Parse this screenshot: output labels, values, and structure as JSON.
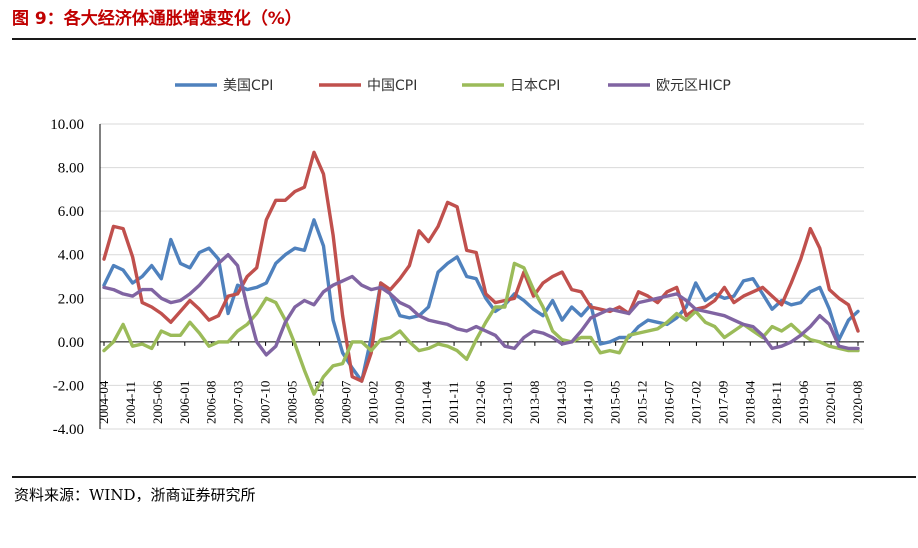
{
  "header": {
    "title": "图 9：各大经济体通胀增速变化（%）"
  },
  "footer": {
    "source": "资料来源：WIND，浙商证券研究所"
  },
  "chart_data": {
    "type": "line",
    "title": "",
    "xlabel": "",
    "ylabel": "",
    "ylim": [
      -4,
      10
    ],
    "yticks": [
      "10.00",
      "8.00",
      "6.00",
      "4.00",
      "2.00",
      "0.00",
      "-2.00",
      "-4.00"
    ],
    "x_ticks": [
      "2004-04",
      "2004-11",
      "2005-06",
      "2006-01",
      "2006-08",
      "2007-03",
      "2007-10",
      "2008-05",
      "2008-12",
      "2009-07",
      "2010-02",
      "2010-09",
      "2011-04",
      "2011-11",
      "2012-06",
      "2013-01",
      "2013-08",
      "2014-03",
      "2014-10",
      "2015-05",
      "2015-12",
      "2016-07",
      "2017-02",
      "2017-09",
      "2018-04",
      "2018-11",
      "2019-06",
      "2020-01",
      "2020-08"
    ],
    "grid": true,
    "legend": "top",
    "series": [
      {
        "name": "美国CPI",
        "color": "#4f81bd",
        "values": [
          2.6,
          3.5,
          3.3,
          2.7,
          3.0,
          3.5,
          2.9,
          4.7,
          3.6,
          3.4,
          4.1,
          4.3,
          3.8,
          1.3,
          2.6,
          2.4,
          2.5,
          2.7,
          3.6,
          4.0,
          4.3,
          4.2,
          5.6,
          4.4,
          1.0,
          -0.5,
          -1.2,
          -1.8,
          0.2,
          2.7,
          2.2,
          1.2,
          1.1,
          1.2,
          1.6,
          3.2,
          3.6,
          3.9,
          3.0,
          2.9,
          2.0,
          1.4,
          1.7,
          2.2,
          1.9,
          1.5,
          1.2,
          1.9,
          1.0,
          1.6,
          1.2,
          1.7,
          -0.1,
          0.0,
          0.2,
          0.2,
          0.7,
          1.0,
          0.9,
          0.8,
          1.1,
          1.6,
          2.7,
          1.9,
          2.2,
          2.0,
          2.1,
          2.8,
          2.9,
          2.2,
          1.5,
          1.9,
          1.7,
          1.8,
          2.3,
          2.5,
          1.5,
          0.1,
          1.0,
          1.4
        ]
      },
      {
        "name": "中国CPI",
        "color": "#c0504d",
        "values": [
          3.8,
          5.3,
          5.2,
          3.9,
          1.8,
          1.6,
          1.3,
          0.9,
          1.4,
          1.9,
          1.5,
          1.0,
          1.2,
          2.1,
          2.2,
          3.0,
          3.4,
          5.6,
          6.5,
          6.5,
          6.9,
          7.1,
          8.7,
          7.7,
          4.9,
          1.2,
          -1.6,
          -1.8,
          -0.5,
          2.7,
          2.4,
          2.9,
          3.5,
          5.1,
          4.6,
          5.3,
          6.4,
          6.2,
          4.2,
          4.1,
          2.2,
          1.8,
          1.9,
          2.0,
          3.2,
          2.1,
          2.7,
          3.0,
          3.2,
          2.4,
          2.3,
          1.6,
          1.5,
          1.4,
          1.6,
          1.3,
          2.3,
          2.1,
          1.8,
          2.3,
          2.5,
          1.2,
          1.5,
          1.6,
          1.9,
          2.5,
          1.8,
          2.1,
          2.3,
          2.5,
          2.1,
          1.7,
          2.7,
          3.8,
          5.2,
          4.3,
          2.4,
          2.0,
          1.7,
          0.5
        ]
      },
      {
        "name": "日本CPI",
        "color": "#9bbb59",
        "values": [
          -0.4,
          0.0,
          0.8,
          -0.2,
          -0.1,
          -0.3,
          0.5,
          0.3,
          0.3,
          0.9,
          0.4,
          -0.2,
          0.0,
          0.0,
          0.5,
          0.8,
          1.3,
          2.0,
          1.8,
          1.0,
          -0.1,
          -1.3,
          -2.4,
          -1.6,
          -1.1,
          -1.0,
          0.0,
          0.0,
          -0.4,
          0.1,
          0.2,
          0.5,
          0.0,
          -0.4,
          -0.3,
          -0.1,
          -0.2,
          -0.4,
          -0.8,
          0.1,
          0.9,
          1.6,
          1.6,
          3.6,
          3.4,
          2.4,
          1.6,
          0.5,
          0.1,
          0.0,
          0.2,
          0.2,
          -0.5,
          -0.4,
          -0.5,
          0.3,
          0.4,
          0.5,
          0.6,
          0.9,
          1.3,
          1.0,
          1.4,
          0.9,
          0.7,
          0.2,
          0.5,
          0.8,
          0.5,
          0.2,
          0.7,
          0.5,
          0.8,
          0.4,
          0.1,
          0.0,
          -0.2,
          -0.3,
          -0.4,
          -0.4
        ]
      },
      {
        "name": "欧元区HICP",
        "color": "#8064a2",
        "values": [
          2.5,
          2.4,
          2.2,
          2.1,
          2.4,
          2.4,
          2.0,
          1.8,
          1.9,
          2.2,
          2.6,
          3.1,
          3.6,
          4.0,
          3.5,
          1.6,
          0.0,
          -0.6,
          -0.2,
          0.9,
          1.6,
          1.9,
          1.7,
          2.3,
          2.6,
          2.8,
          3.0,
          2.6,
          2.4,
          2.5,
          2.2,
          1.8,
          1.6,
          1.2,
          1.0,
          0.9,
          0.8,
          0.6,
          0.5,
          0.7,
          0.5,
          0.3,
          -0.2,
          -0.3,
          0.2,
          0.5,
          0.4,
          0.2,
          -0.1,
          0.0,
          0.5,
          1.1,
          1.3,
          1.5,
          1.4,
          1.3,
          1.8,
          1.9,
          2.0,
          2.1,
          2.2,
          1.9,
          1.5,
          1.4,
          1.3,
          1.2,
          1.0,
          0.8,
          0.7,
          0.3,
          -0.3,
          -0.2,
          0.0,
          0.3,
          0.7,
          1.2,
          0.8,
          -0.2,
          -0.3,
          -0.3
        ]
      }
    ]
  }
}
